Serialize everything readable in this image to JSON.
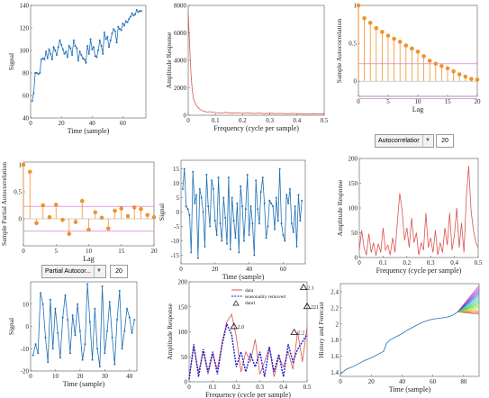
{
  "chart_data": [
    {
      "panel": 1,
      "type": "line",
      "xlabel": "Time (sample)",
      "ylabel": "Signal",
      "xlim": [
        0,
        75
      ],
      "ylim": [
        40,
        140
      ],
      "xticks": [
        0,
        20,
        40,
        60
      ],
      "yticks": [
        40,
        60,
        80,
        100,
        120,
        140
      ],
      "series": [
        {
          "color": "#1f6fb5",
          "x": [
            1,
            2,
            3,
            4,
            5,
            6,
            7,
            8,
            9,
            10,
            11,
            12,
            13,
            14,
            15,
            16,
            17,
            18,
            19,
            20,
            21,
            22,
            23,
            24,
            25,
            26,
            27,
            28,
            29,
            30,
            31,
            32,
            33,
            34,
            35,
            36,
            37,
            38,
            39,
            40,
            41,
            42,
            43,
            44,
            45,
            46,
            47,
            48,
            49,
            50,
            51,
            52,
            53,
            54,
            55,
            56,
            57,
            58,
            59,
            60,
            61,
            62,
            63,
            64,
            65,
            66,
            67,
            68,
            69,
            70,
            71,
            72
          ],
          "y": [
            55,
            62,
            80,
            80,
            79,
            80,
            92,
            93,
            92,
            99,
            93,
            101,
            97,
            92,
            103,
            100,
            96,
            103,
            109,
            105,
            101,
            97,
            99,
            94,
            104,
            102,
            96,
            109,
            104,
            102,
            91,
            99,
            96,
            93,
            92,
            89,
            104,
            97,
            110,
            101,
            103,
            95,
            94,
            100,
            109,
            104,
            97,
            116,
            110,
            112,
            103,
            109,
            115,
            119,
            117,
            107,
            121,
            119,
            118,
            124,
            122,
            126,
            125,
            128,
            130,
            133,
            131,
            132,
            136,
            134,
            135,
            135
          ]
        }
      ]
    },
    {
      "panel": 2,
      "type": "line",
      "xlabel": "Frequency (cycle per sample)",
      "ylabel": "Amplitude Response",
      "xlim": [
        0,
        0.5
      ],
      "ylim": [
        0,
        8000
      ],
      "xticks": [
        0,
        0.1,
        0.2,
        0.3,
        0.4,
        0.5
      ],
      "yticks": [
        0,
        2000,
        4000,
        6000,
        8000
      ],
      "series": [
        {
          "color": "#d9534f",
          "x": [
            0,
            0.005,
            0.01,
            0.015,
            0.02,
            0.03,
            0.04,
            0.05,
            0.06,
            0.07,
            0.08,
            0.1,
            0.12,
            0.14,
            0.16,
            0.18,
            0.2,
            0.22,
            0.24,
            0.26,
            0.28,
            0.3,
            0.32,
            0.34,
            0.36,
            0.38,
            0.4,
            0.42,
            0.44,
            0.46,
            0.48,
            0.5
          ],
          "y": [
            7500,
            5200,
            3100,
            1800,
            1150,
            700,
            480,
            340,
            290,
            230,
            260,
            200,
            160,
            210,
            150,
            190,
            140,
            170,
            130,
            160,
            120,
            150,
            120,
            140,
            110,
            130,
            120,
            110,
            100,
            120,
            100,
            110
          ]
        }
      ]
    },
    {
      "panel": 3,
      "type": "stem",
      "xlabel": "Lag",
      "ylabel": "Sample Autocorrelation",
      "xlim": [
        0,
        20
      ],
      "ylim": [
        -0.2,
        1
      ],
      "xticks": [
        0,
        5,
        10,
        15,
        20
      ],
      "yticks": [
        0,
        0.5,
        1
      ],
      "bound": 0.23,
      "series": [
        {
          "color": "#f0922d",
          "x": [
            0,
            1,
            2,
            3,
            4,
            5,
            6,
            7,
            8,
            9,
            10,
            11,
            12,
            13,
            14,
            15,
            16,
            17,
            18,
            19,
            20
          ],
          "y": [
            1,
            0.83,
            0.77,
            0.7,
            0.65,
            0.6,
            0.56,
            0.52,
            0.47,
            0.43,
            0.39,
            0.33,
            0.27,
            0.23,
            0.2,
            0.17,
            0.13,
            0.09,
            0.06,
            0.03,
            0.02
          ]
        }
      ],
      "controls": {
        "select": "Autocorrelation",
        "value": "20"
      }
    },
    {
      "panel": 4,
      "type": "stem",
      "xlabel": "Lag",
      "ylabel": "Sample Partial Autocorrelation",
      "xlim": [
        0,
        20
      ],
      "ylim": [
        -0.5,
        1.05
      ],
      "xticks": [
        0,
        5,
        10,
        15,
        20
      ],
      "yticks": [
        0,
        0.5,
        1
      ],
      "bound": 0.23,
      "series": [
        {
          "color": "#f0922d",
          "x": [
            0,
            1,
            2,
            3,
            4,
            5,
            6,
            7,
            8,
            9,
            10,
            11,
            12,
            13,
            14,
            15,
            16,
            17,
            18,
            19,
            20
          ],
          "y": [
            1,
            0.87,
            -0.08,
            0.25,
            0.03,
            0.26,
            -0.02,
            -0.28,
            -0.06,
            0.33,
            -0.2,
            0.12,
            0.02,
            -0.18,
            0.15,
            0.19,
            0.05,
            0.21,
            0.18,
            0.07,
            0.03
          ]
        }
      ],
      "controls": {
        "select": "Partial Autocor...",
        "value": "20"
      }
    },
    {
      "panel": 5,
      "type": "line",
      "xlabel": "Time (sample)",
      "ylabel": "Signal",
      "xlim": [
        0,
        73
      ],
      "ylim": [
        -18,
        18
      ],
      "xticks": [
        0,
        20,
        40,
        60
      ],
      "yticks": [
        -15,
        -10,
        -5,
        0,
        5,
        10,
        15
      ],
      "series": [
        {
          "color": "#1f6fb5",
          "x": [
            1,
            2,
            3,
            4,
            5,
            6,
            7,
            8,
            9,
            10,
            11,
            12,
            13,
            14,
            15,
            16,
            17,
            18,
            19,
            20,
            21,
            22,
            23,
            24,
            25,
            26,
            27,
            28,
            29,
            30,
            31,
            32,
            33,
            34,
            35,
            36,
            37,
            38,
            39,
            40,
            41,
            42,
            43,
            44,
            45,
            46,
            47,
            48,
            49,
            50,
            51,
            52,
            53,
            54,
            55,
            56,
            57,
            58,
            59,
            60,
            61,
            62,
            63,
            64,
            65,
            66,
            67,
            68,
            69,
            70,
            71
          ],
          "y": [
            8,
            15,
            2,
            1,
            -1,
            -14,
            14,
            3,
            6,
            -16,
            8,
            5,
            0,
            -12,
            13,
            2,
            -5,
            11,
            8,
            -3,
            -8,
            12,
            -4,
            -10,
            5,
            -2,
            -11,
            12,
            -13,
            5,
            -3,
            -9,
            3,
            -14,
            9,
            2,
            -10,
            1,
            13,
            -8,
            2,
            -4,
            -15,
            11,
            1,
            -4,
            7,
            12,
            3,
            -9,
            -5,
            4,
            3,
            2,
            -6,
            5,
            -3,
            15,
            -4,
            -8,
            -10,
            6,
            3,
            8,
            -4,
            -7,
            2,
            -12,
            6,
            -3,
            4
          ]
        }
      ]
    },
    {
      "panel": 6,
      "type": "line",
      "xlabel": "Frequency (cycle per sample)",
      "ylabel": "Amplitude Response",
      "xlim": [
        0,
        0.5
      ],
      "ylim": [
        0,
        200
      ],
      "xticks": [
        0,
        0.1,
        0.2,
        0.3,
        0.4,
        0.5
      ],
      "yticks": [
        0,
        50,
        100,
        150,
        200
      ],
      "series": [
        {
          "color": "#d9534f",
          "x": [
            0,
            0.01,
            0.02,
            0.03,
            0.04,
            0.05,
            0.06,
            0.07,
            0.08,
            0.09,
            0.1,
            0.11,
            0.12,
            0.13,
            0.14,
            0.15,
            0.16,
            0.17,
            0.18,
            0.19,
            0.2,
            0.21,
            0.22,
            0.23,
            0.24,
            0.25,
            0.26,
            0.27,
            0.28,
            0.29,
            0.3,
            0.31,
            0.32,
            0.33,
            0.34,
            0.35,
            0.36,
            0.37,
            0.38,
            0.39,
            0.4,
            0.41,
            0.42,
            0.43,
            0.44,
            0.45,
            0.46,
            0.47,
            0.48,
            0.49,
            0.5
          ],
          "y": [
            15,
            55,
            20,
            5,
            48,
            10,
            30,
            4,
            28,
            10,
            60,
            15,
            25,
            5,
            40,
            10,
            70,
            130,
            95,
            35,
            60,
            20,
            80,
            30,
            50,
            5,
            30,
            15,
            90,
            20,
            40,
            10,
            55,
            5,
            30,
            10,
            60,
            25,
            90,
            15,
            45,
            100,
            20,
            70,
            10,
            120,
            185,
            95,
            55,
            30,
            20
          ]
        }
      ]
    },
    {
      "panel": 7,
      "type": "line",
      "xlabel": "Time (sample)",
      "ylabel": "Signal",
      "xlim": [
        0,
        43
      ],
      "ylim": [
        -20,
        20
      ],
      "xticks": [
        0,
        10,
        20,
        30,
        40
      ],
      "yticks": [
        -20,
        -10,
        0,
        10
      ],
      "series": [
        {
          "color": "#1f6fb5",
          "x": [
            1,
            2,
            3,
            4,
            5,
            6,
            7,
            8,
            9,
            10,
            11,
            12,
            13,
            14,
            15,
            16,
            17,
            18,
            19,
            20,
            21,
            22,
            23,
            24,
            25,
            26,
            27,
            28,
            29,
            30,
            31,
            32,
            33,
            34,
            35,
            36,
            37,
            38,
            39,
            40,
            41,
            42
          ],
          "y": [
            -13,
            -8,
            -12,
            15,
            10,
            -5,
            -16,
            12,
            -10,
            8,
            -3,
            -14,
            4,
            14,
            3,
            -12,
            5,
            -4,
            10,
            -2,
            -15,
            -8,
            19,
            2,
            -15,
            8,
            -10,
            -18,
            18,
            -12,
            -2,
            11,
            -5,
            -17,
            3,
            16,
            -10,
            -2,
            8,
            4,
            -3,
            3
          ]
        }
      ]
    },
    {
      "panel": 8,
      "type": "line",
      "xlabel": "Frequency (cycle per sample)",
      "ylabel": "Amplitude Response",
      "xlim": [
        0,
        0.5
      ],
      "ylim": [
        0,
        200
      ],
      "xticks": [
        0,
        0.1,
        0.2,
        0.3,
        0.4,
        0.5
      ],
      "yticks": [
        0,
        50,
        100,
        150,
        200
      ],
      "legend": [
        "data",
        "seasonality removed",
        "data1"
      ],
      "series": [
        {
          "name": "data",
          "color": "#d9534f",
          "x": [
            0,
            0.02,
            0.04,
            0.06,
            0.08,
            0.1,
            0.12,
            0.14,
            0.16,
            0.18,
            0.2,
            0.22,
            0.24,
            0.26,
            0.28,
            0.3,
            0.32,
            0.34,
            0.36,
            0.38,
            0.4,
            0.42,
            0.44,
            0.46,
            0.48,
            0.5
          ],
          "y": [
            10,
            70,
            20,
            60,
            15,
            55,
            25,
            80,
            120,
            135,
            90,
            20,
            60,
            40,
            85,
            15,
            40,
            70,
            10,
            50,
            30,
            60,
            25,
            100,
            40,
            110
          ]
        },
        {
          "name": "seasonality removed",
          "color": "#1a1acc",
          "x": [
            0,
            0.02,
            0.04,
            0.06,
            0.08,
            0.1,
            0.12,
            0.14,
            0.16,
            0.18,
            0.2,
            0.22,
            0.24,
            0.26,
            0.28,
            0.3,
            0.32,
            0.34,
            0.36,
            0.38,
            0.4,
            0.42,
            0.44,
            0.46,
            0.48,
            0.5
          ],
          "y": [
            5,
            75,
            10,
            65,
            20,
            60,
            15,
            75,
            115,
            95,
            30,
            60,
            20,
            55,
            30,
            60,
            10,
            70,
            20,
            55,
            10,
            75,
            40,
            65,
            80,
            95
          ]
        }
      ],
      "annotations": [
        {
          "label": "2.1",
          "x": 0.485,
          "y": 188
        },
        {
          "label": "221",
          "x": 0.5,
          "y": 150
        },
        {
          "label": "2.0",
          "x": 0.19,
          "y": 110
        },
        {
          "label": "2.2",
          "x": 0.445,
          "y": 98
        }
      ]
    },
    {
      "panel": 9,
      "type": "line",
      "xlabel": "Time (sample)",
      "ylabel": "History and Forecast",
      "xlim": [
        0,
        90
      ],
      "ylim": [
        1.35,
        2.5
      ],
      "xticks": [
        0,
        20,
        40,
        60,
        80
      ],
      "yticks": [
        1.4,
        1.6,
        1.8,
        2,
        2.2,
        2.4
      ],
      "series": [
        {
          "color": "#1f6fb5",
          "x": [
            0,
            4,
            8,
            12,
            16,
            20,
            24,
            28,
            30,
            32,
            36,
            40,
            44,
            48,
            52,
            56,
            60,
            64,
            68,
            70,
            72,
            74,
            76
          ],
          "y": [
            1.38,
            1.44,
            1.47,
            1.51,
            1.55,
            1.58,
            1.62,
            1.66,
            1.76,
            1.8,
            1.84,
            1.88,
            1.93,
            1.97,
            2.01,
            2.04,
            2.06,
            2.07,
            2.08,
            2.09,
            2.1,
            2.12,
            2.15
          ]
        }
      ],
      "forecast": {
        "start": [
          76,
          2.15
        ],
        "end_x": 90,
        "end_range": [
          2.12,
          2.48
        ]
      }
    }
  ]
}
